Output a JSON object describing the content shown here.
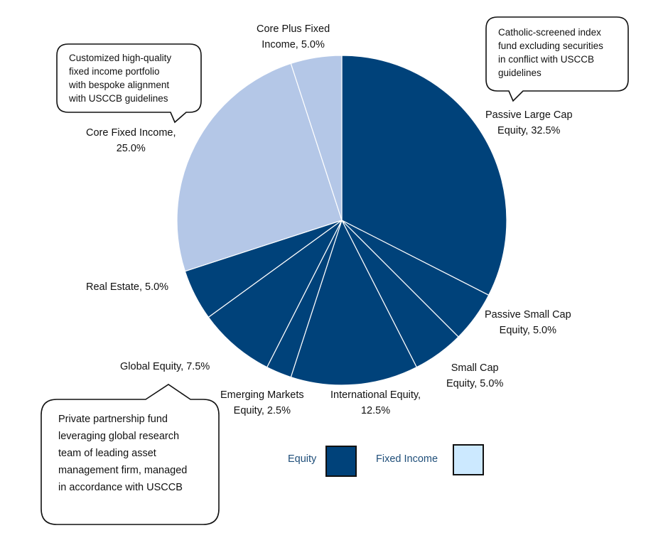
{
  "chart_data": {
    "type": "pie",
    "start": "12 o'clock, clockwise",
    "slices": [
      {
        "label": "Passive Large Cap Equity, 32.5%",
        "value": 32.5,
        "group": "Equity"
      },
      {
        "label": "Passive Small Cap Equity, 5.0%",
        "value": 5.0,
        "group": "Equity"
      },
      {
        "label": "Small Cap Equity, 5.0%",
        "value": 5.0,
        "group": "Equity"
      },
      {
        "label": "International Equity, 12.5%",
        "value": 12.5,
        "group": "Equity"
      },
      {
        "label": "Emerging Markets Equity, 2.5%",
        "value": 2.5,
        "group": "Equity"
      },
      {
        "label": "Global Equity, 7.5%",
        "value": 7.5,
        "group": "Equity"
      },
      {
        "label": "Real Estate, 5.0%",
        "value": 5.0,
        "group": "Equity"
      },
      {
        "label": "Core Fixed Income, 25.0%",
        "value": 25.0,
        "group": "Fixed Income"
      },
      {
        "label": "Core Plus Fixed Income, 5.0%",
        "value": 5.0,
        "group": "Fixed Income"
      }
    ],
    "display_labels": [
      "Passive Large Cap\nEquity, 32.5%",
      "Passive Small Cap\nEquity, 5.0%",
      "Small Cap\nEquity, 5.0%",
      "International Equity,\n12.5%",
      "Emerging Markets\nEquity, 2.5%",
      "Global Equity, 7.5%",
      "Real Estate, 5.0%",
      "Core Fixed Income,\n25.0%",
      "Core Plus Fixed\nIncome, 5.0%"
    ],
    "colors": {
      "Equity": "#00427a",
      "Fixed Income": "#b4c7e7",
      "slice_border": "#ffffff"
    },
    "legend": {
      "placement": "bottom-right",
      "items": [
        {
          "label": "Equity",
          "color": "#00427a"
        },
        {
          "label": "Fixed Income",
          "color": "#cce9ff"
        }
      ]
    },
    "annotations": [
      {
        "text": "Catholic-screened index\nfund excluding securities\nin conflict with USCCB\nguidelines",
        "target": "Passive Large Cap Equity"
      },
      {
        "text": "Customized high-quality\nfixed income portfolio\nwith bespoke alignment\nwith USCCB guidelines",
        "target": "Core Fixed Income"
      },
      {
        "text": "Private partnership fund\nleveraging global research\nteam of leading asset\nmanagement firm, managed\nin accordance with USCCB",
        "target": "Global Equity"
      }
    ]
  }
}
